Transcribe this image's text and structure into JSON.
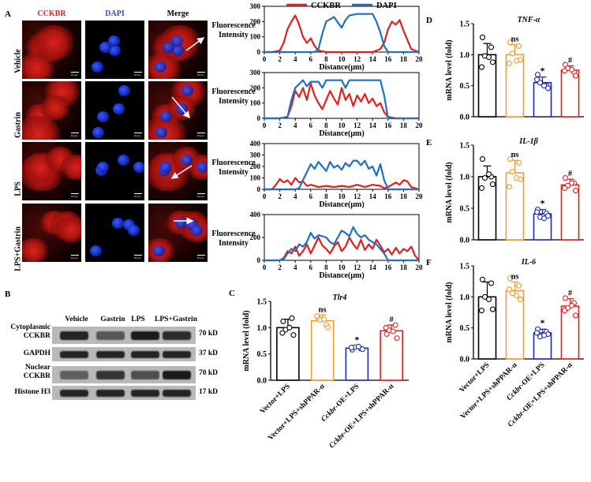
{
  "panels": {
    "A": "A",
    "B": "B",
    "C": "C",
    "D": "D",
    "E": "E",
    "F": "F"
  },
  "microscopy": {
    "columns": [
      "CCKBR",
      "DAPI",
      "Merge"
    ],
    "column_colors": [
      "#e0201c",
      "#2b4bd6",
      "#000000"
    ],
    "rows": [
      "Vehicle",
      "Gastrin",
      "LPS",
      "LPS+Gastrin"
    ],
    "scale_bar": "10 μm"
  },
  "western_blot": {
    "lanes": [
      "Vehicle",
      "Gastrin",
      "LPS",
      "LPS+Gastrin"
    ],
    "bands": [
      {
        "label": "Cytoplasmic\nCCKBR",
        "kda": "70 kD",
        "intensity": [
          0.85,
          0.55,
          0.9,
          0.8
        ]
      },
      {
        "label": "GAPDH",
        "kda": "37 kD",
        "intensity": [
          0.85,
          0.85,
          0.85,
          0.85
        ]
      },
      {
        "label": "Nuclear\nCCKBR",
        "kda": "70 kD",
        "intensity": [
          0.5,
          0.75,
          0.6,
          0.9
        ]
      },
      {
        "label": "Histone H3",
        "kda": "17 kD",
        "intensity": [
          0.85,
          0.85,
          0.85,
          0.85
        ]
      }
    ]
  },
  "bar_categories": [
    "Vector+LPS",
    "Vector+LPS+shPPAR-α",
    "Cckbr-OE+LPS",
    "Cckbr-OE+LPS+shPPAR-α"
  ],
  "bar_colors": [
    "#000000",
    "#f39a2b",
    "#1c2bb0",
    "#e0201c"
  ],
  "colors": {
    "cckbr": "#e0201c",
    "dapi": "#1f6fc5"
  },
  "chart_data": [
    {
      "type": "line",
      "panel": "A-Vehicle",
      "xlabel": "Distance(μm)",
      "ylabel": "Fluorescence Intensity",
      "xlim": [
        0,
        20
      ],
      "ylim": [
        0,
        300
      ],
      "yticks": [
        0,
        100,
        200,
        300
      ],
      "xticks": [
        0,
        2,
        4,
        6,
        8,
        10,
        12,
        14,
        16,
        18,
        20
      ],
      "legend": "top",
      "series": [
        {
          "name": "CCKBR",
          "x": [
            0,
            1,
            2,
            2.5,
            3,
            3.5,
            4,
            4.5,
            5,
            5.5,
            6,
            6.5,
            7,
            7.5,
            8,
            9,
            10,
            11,
            12,
            13,
            14,
            15,
            15.5,
            16,
            16.5,
            17,
            17.5,
            18,
            18.5,
            19,
            20
          ],
          "y": [
            0,
            0,
            10,
            60,
            150,
            200,
            240,
            180,
            100,
            60,
            90,
            40,
            10,
            5,
            0,
            0,
            0,
            0,
            0,
            0,
            0,
            20,
            60,
            150,
            200,
            180,
            210,
            140,
            80,
            20,
            0
          ]
        },
        {
          "name": "DAPI",
          "x": [
            0,
            1,
            2,
            3,
            4,
            5,
            6,
            6.5,
            7,
            7.5,
            8,
            9,
            10,
            10.5,
            11,
            12,
            13,
            14,
            14.5,
            15,
            15.5,
            16,
            17,
            18,
            19,
            20
          ],
          "y": [
            0,
            0,
            0,
            0,
            0,
            0,
            0,
            0,
            20,
            120,
            200,
            230,
            160,
            210,
            240,
            250,
            250,
            250,
            200,
            130,
            40,
            0,
            0,
            0,
            0,
            0
          ]
        }
      ]
    },
    {
      "type": "line",
      "panel": "A-Gastrin",
      "xlabel": "Distance(μm)",
      "ylabel": "Fluorescence Intensity",
      "xlim": [
        0,
        20
      ],
      "ylim": [
        0,
        300
      ],
      "yticks": [
        0,
        100,
        200,
        300
      ],
      "xticks": [
        0,
        2,
        4,
        6,
        8,
        10,
        12,
        14,
        16,
        18,
        20
      ],
      "series": [
        {
          "name": "CCKBR",
          "x": [
            0,
            1,
            2,
            3,
            3.5,
            4,
            4.5,
            5,
            5.5,
            6,
            6.5,
            7,
            7.5,
            8,
            8.5,
            9,
            9.5,
            10,
            10.5,
            11,
            11.5,
            12,
            12.5,
            13,
            13.5,
            14,
            14.5,
            15,
            15.5,
            16,
            17,
            18,
            19,
            20
          ],
          "y": [
            0,
            0,
            0,
            10,
            80,
            180,
            140,
            200,
            120,
            230,
            150,
            100,
            60,
            120,
            180,
            130,
            90,
            200,
            120,
            160,
            80,
            150,
            110,
            160,
            100,
            130,
            80,
            100,
            40,
            10,
            0,
            0,
            0,
            0
          ]
        },
        {
          "name": "DAPI",
          "x": [
            0,
            1,
            2,
            3,
            3.5,
            4,
            5,
            5.5,
            6,
            7,
            7.5,
            8,
            9,
            10,
            10.5,
            11,
            12,
            13,
            14,
            15,
            15.5,
            16,
            17,
            18,
            19,
            20
          ],
          "y": [
            0,
            0,
            0,
            10,
            120,
            200,
            250,
            210,
            240,
            240,
            200,
            250,
            250,
            250,
            200,
            250,
            250,
            250,
            250,
            250,
            150,
            0,
            0,
            0,
            0,
            0
          ]
        }
      ]
    },
    {
      "type": "line",
      "panel": "A-LPS",
      "xlabel": "Distance(μm)",
      "ylabel": "Fluorescence Intensity",
      "xlim": [
        0,
        20
      ],
      "ylim": [
        0,
        400
      ],
      "yticks": [
        0,
        100,
        200,
        300,
        400
      ],
      "xticks": [
        0,
        2,
        4,
        6,
        8,
        10,
        12,
        14,
        16,
        18,
        20
      ],
      "series": [
        {
          "name": "CCKBR",
          "x": [
            0,
            1,
            1.5,
            2,
            2.5,
            3,
            3.5,
            4,
            4.5,
            5,
            5.5,
            6,
            7,
            8,
            9,
            10,
            11,
            12,
            13,
            14,
            15,
            15.5,
            16,
            16.5,
            17,
            17.5,
            18,
            18.5,
            19,
            20
          ],
          "y": [
            0,
            0,
            40,
            90,
            60,
            80,
            40,
            100,
            60,
            70,
            30,
            40,
            20,
            30,
            20,
            30,
            20,
            40,
            20,
            40,
            30,
            10,
            20,
            40,
            60,
            40,
            80,
            70,
            20,
            0
          ]
        },
        {
          "name": "DAPI",
          "x": [
            0,
            1,
            2,
            3,
            4,
            4.5,
            5,
            5.5,
            6,
            6.5,
            7,
            7.5,
            8,
            8.5,
            9,
            9.5,
            10,
            10.5,
            11,
            11.5,
            12,
            12.5,
            13,
            13.5,
            14,
            14.5,
            15,
            15.5,
            16,
            17,
            18,
            19,
            20
          ],
          "y": [
            0,
            0,
            0,
            0,
            0,
            10,
            80,
            150,
            220,
            180,
            240,
            200,
            160,
            240,
            190,
            210,
            170,
            230,
            200,
            250,
            250,
            210,
            250,
            180,
            200,
            120,
            220,
            80,
            0,
            0,
            0,
            0,
            0
          ]
        }
      ]
    },
    {
      "type": "line",
      "panel": "A-LPS+Gastrin",
      "xlabel": "Distance(μm)",
      "ylabel": "Fluorescence Intensity",
      "xlim": [
        0,
        20
      ],
      "ylim": [
        0,
        400
      ],
      "yticks": [
        0,
        200,
        400
      ],
      "xticks": [
        0,
        2,
        4,
        6,
        8,
        10,
        12,
        14,
        16,
        18,
        20
      ],
      "series": [
        {
          "name": "CCKBR",
          "x": [
            0,
            1,
            2,
            2.5,
            3,
            3.5,
            4,
            4.5,
            5,
            5.5,
            6,
            7,
            7.5,
            8,
            8.5,
            9,
            9.5,
            10,
            10.5,
            11,
            11.5,
            12,
            12.5,
            13,
            13.5,
            14,
            14.5,
            15,
            15.5,
            16,
            16.5,
            17,
            17.5,
            18,
            18.5,
            19,
            19.5,
            20
          ],
          "y": [
            0,
            0,
            0,
            20,
            80,
            60,
            120,
            40,
            80,
            140,
            60,
            200,
            130,
            100,
            60,
            120,
            160,
            80,
            120,
            200,
            140,
            100,
            180,
            90,
            140,
            100,
            180,
            130,
            70,
            100,
            50,
            110,
            60,
            100,
            80,
            120,
            40,
            0
          ]
        },
        {
          "name": "DAPI",
          "x": [
            0,
            1,
            2,
            2.5,
            3,
            3.5,
            4,
            4.5,
            5,
            5.5,
            6,
            6.5,
            7,
            8,
            8.5,
            9,
            9.5,
            10,
            10.5,
            11,
            11.5,
            12,
            12.5,
            13,
            13.5,
            14,
            14.5,
            15,
            15.5,
            16,
            17,
            18,
            19,
            20
          ],
          "y": [
            0,
            0,
            0,
            10,
            60,
            100,
            80,
            140,
            120,
            160,
            240,
            190,
            220,
            200,
            160,
            140,
            200,
            260,
            240,
            210,
            290,
            230,
            200,
            220,
            180,
            160,
            140,
            100,
            60,
            0,
            0,
            0,
            0,
            0
          ]
        }
      ]
    },
    {
      "type": "bar",
      "panel": "C",
      "title": "Tlr4",
      "ylabel": "mRNA level (fold)",
      "ylim": [
        0,
        1.5
      ],
      "yticks": [
        0.0,
        0.5,
        1.0,
        1.5
      ],
      "categories": [
        "Vector+LPS",
        "Vector+LPS+shPPAR-α",
        "Cckbr-OE+LPS",
        "Cckbr-OE+LPS+shPPAR-α"
      ],
      "values": [
        1.0,
        1.13,
        0.61,
        0.94
      ],
      "errors": [
        0.16,
        0.11,
        0.04,
        0.11
      ],
      "annotations": [
        "",
        "ns",
        "*",
        "#"
      ],
      "points": [
        [
          1.12,
          1.18,
          0.96,
          0.86,
          0.9,
          1.0
        ],
        [
          1.2,
          1.05,
          1.15,
          1.0,
          1.22,
          1.16
        ],
        [
          0.58,
          0.6,
          0.63,
          0.59,
          0.62,
          0.64
        ],
        [
          0.88,
          1.05,
          0.95,
          0.8,
          1.0,
          0.93
        ]
      ]
    },
    {
      "type": "bar",
      "panel": "D",
      "title": "TNF-α",
      "ylabel": "mRNA level (fold)",
      "ylim": [
        0,
        1.5
      ],
      "yticks": [
        0.0,
        0.5,
        1.0,
        1.5
      ],
      "categories": [
        "Vector+LPS",
        "Vector+LPS+shPPAR-α",
        "Cckbr-OE+LPS",
        "Cckbr-OE+LPS+shPPAR-α"
      ],
      "values": [
        1.0,
        1.0,
        0.55,
        0.75
      ],
      "errors": [
        0.18,
        0.16,
        0.09,
        0.07
      ],
      "annotations": [
        "",
        "ns",
        "*",
        "#"
      ],
      "points": [
        [
          1.28,
          1.12,
          0.98,
          0.88,
          0.8,
          0.96
        ],
        [
          1.2,
          1.14,
          1.02,
          0.92,
          0.86,
          0.9
        ],
        [
          0.68,
          0.5,
          0.55,
          0.46,
          0.6,
          0.5
        ],
        [
          0.84,
          0.72,
          0.78,
          0.66,
          0.74,
          0.76
        ]
      ]
    },
    {
      "type": "bar",
      "panel": "E",
      "title": "IL-1β",
      "ylabel": "mRNA level (fold)",
      "ylim": [
        0,
        1.5
      ],
      "yticks": [
        0.0,
        0.5,
        1.0,
        1.5
      ],
      "categories": [
        "Vector+LPS",
        "Vector+LPS+shPPAR-α",
        "Cckbr-OE+LPS",
        "Cckbr-OE+LPS+shPPAR-α"
      ],
      "values": [
        1.0,
        1.06,
        0.41,
        0.87
      ],
      "errors": [
        0.17,
        0.2,
        0.07,
        0.09
      ],
      "annotations": [
        "",
        "ns",
        "*",
        "#"
      ],
      "points": [
        [
          1.28,
          1.0,
          0.98,
          0.88,
          0.82,
          1.04
        ],
        [
          1.28,
          1.22,
          1.08,
          0.96,
          0.84,
          0.98
        ],
        [
          0.48,
          0.42,
          0.36,
          0.38,
          0.44,
          0.34
        ],
        [
          0.98,
          0.9,
          0.86,
          0.78,
          0.82,
          0.9
        ]
      ]
    },
    {
      "type": "bar",
      "panel": "F",
      "title": "IL-6",
      "ylabel": "mRNA level (fold)",
      "ylim": [
        0,
        1.5
      ],
      "yticks": [
        0.0,
        0.5,
        1.0,
        1.5
      ],
      "categories": [
        "Vector+LPS",
        "Vector+LPS+shPPAR-α",
        "Cckbr-OE+LPS",
        "Cckbr-OE+LPS+shPPAR-α"
      ],
      "values": [
        1.0,
        1.1,
        0.42,
        0.85
      ],
      "errors": [
        0.24,
        0.14,
        0.06,
        0.12
      ],
      "annotations": [
        "",
        "ns",
        "*",
        "#"
      ],
      "points": [
        [
          1.28,
          1.22,
          1.0,
          0.8,
          0.78,
          0.96
        ],
        [
          1.3,
          1.18,
          1.06,
          0.96,
          1.12,
          1.02
        ],
        [
          0.48,
          0.44,
          0.36,
          0.4,
          0.42,
          0.38
        ],
        [
          0.98,
          0.9,
          0.82,
          0.7,
          0.78,
          0.86
        ]
      ]
    }
  ]
}
